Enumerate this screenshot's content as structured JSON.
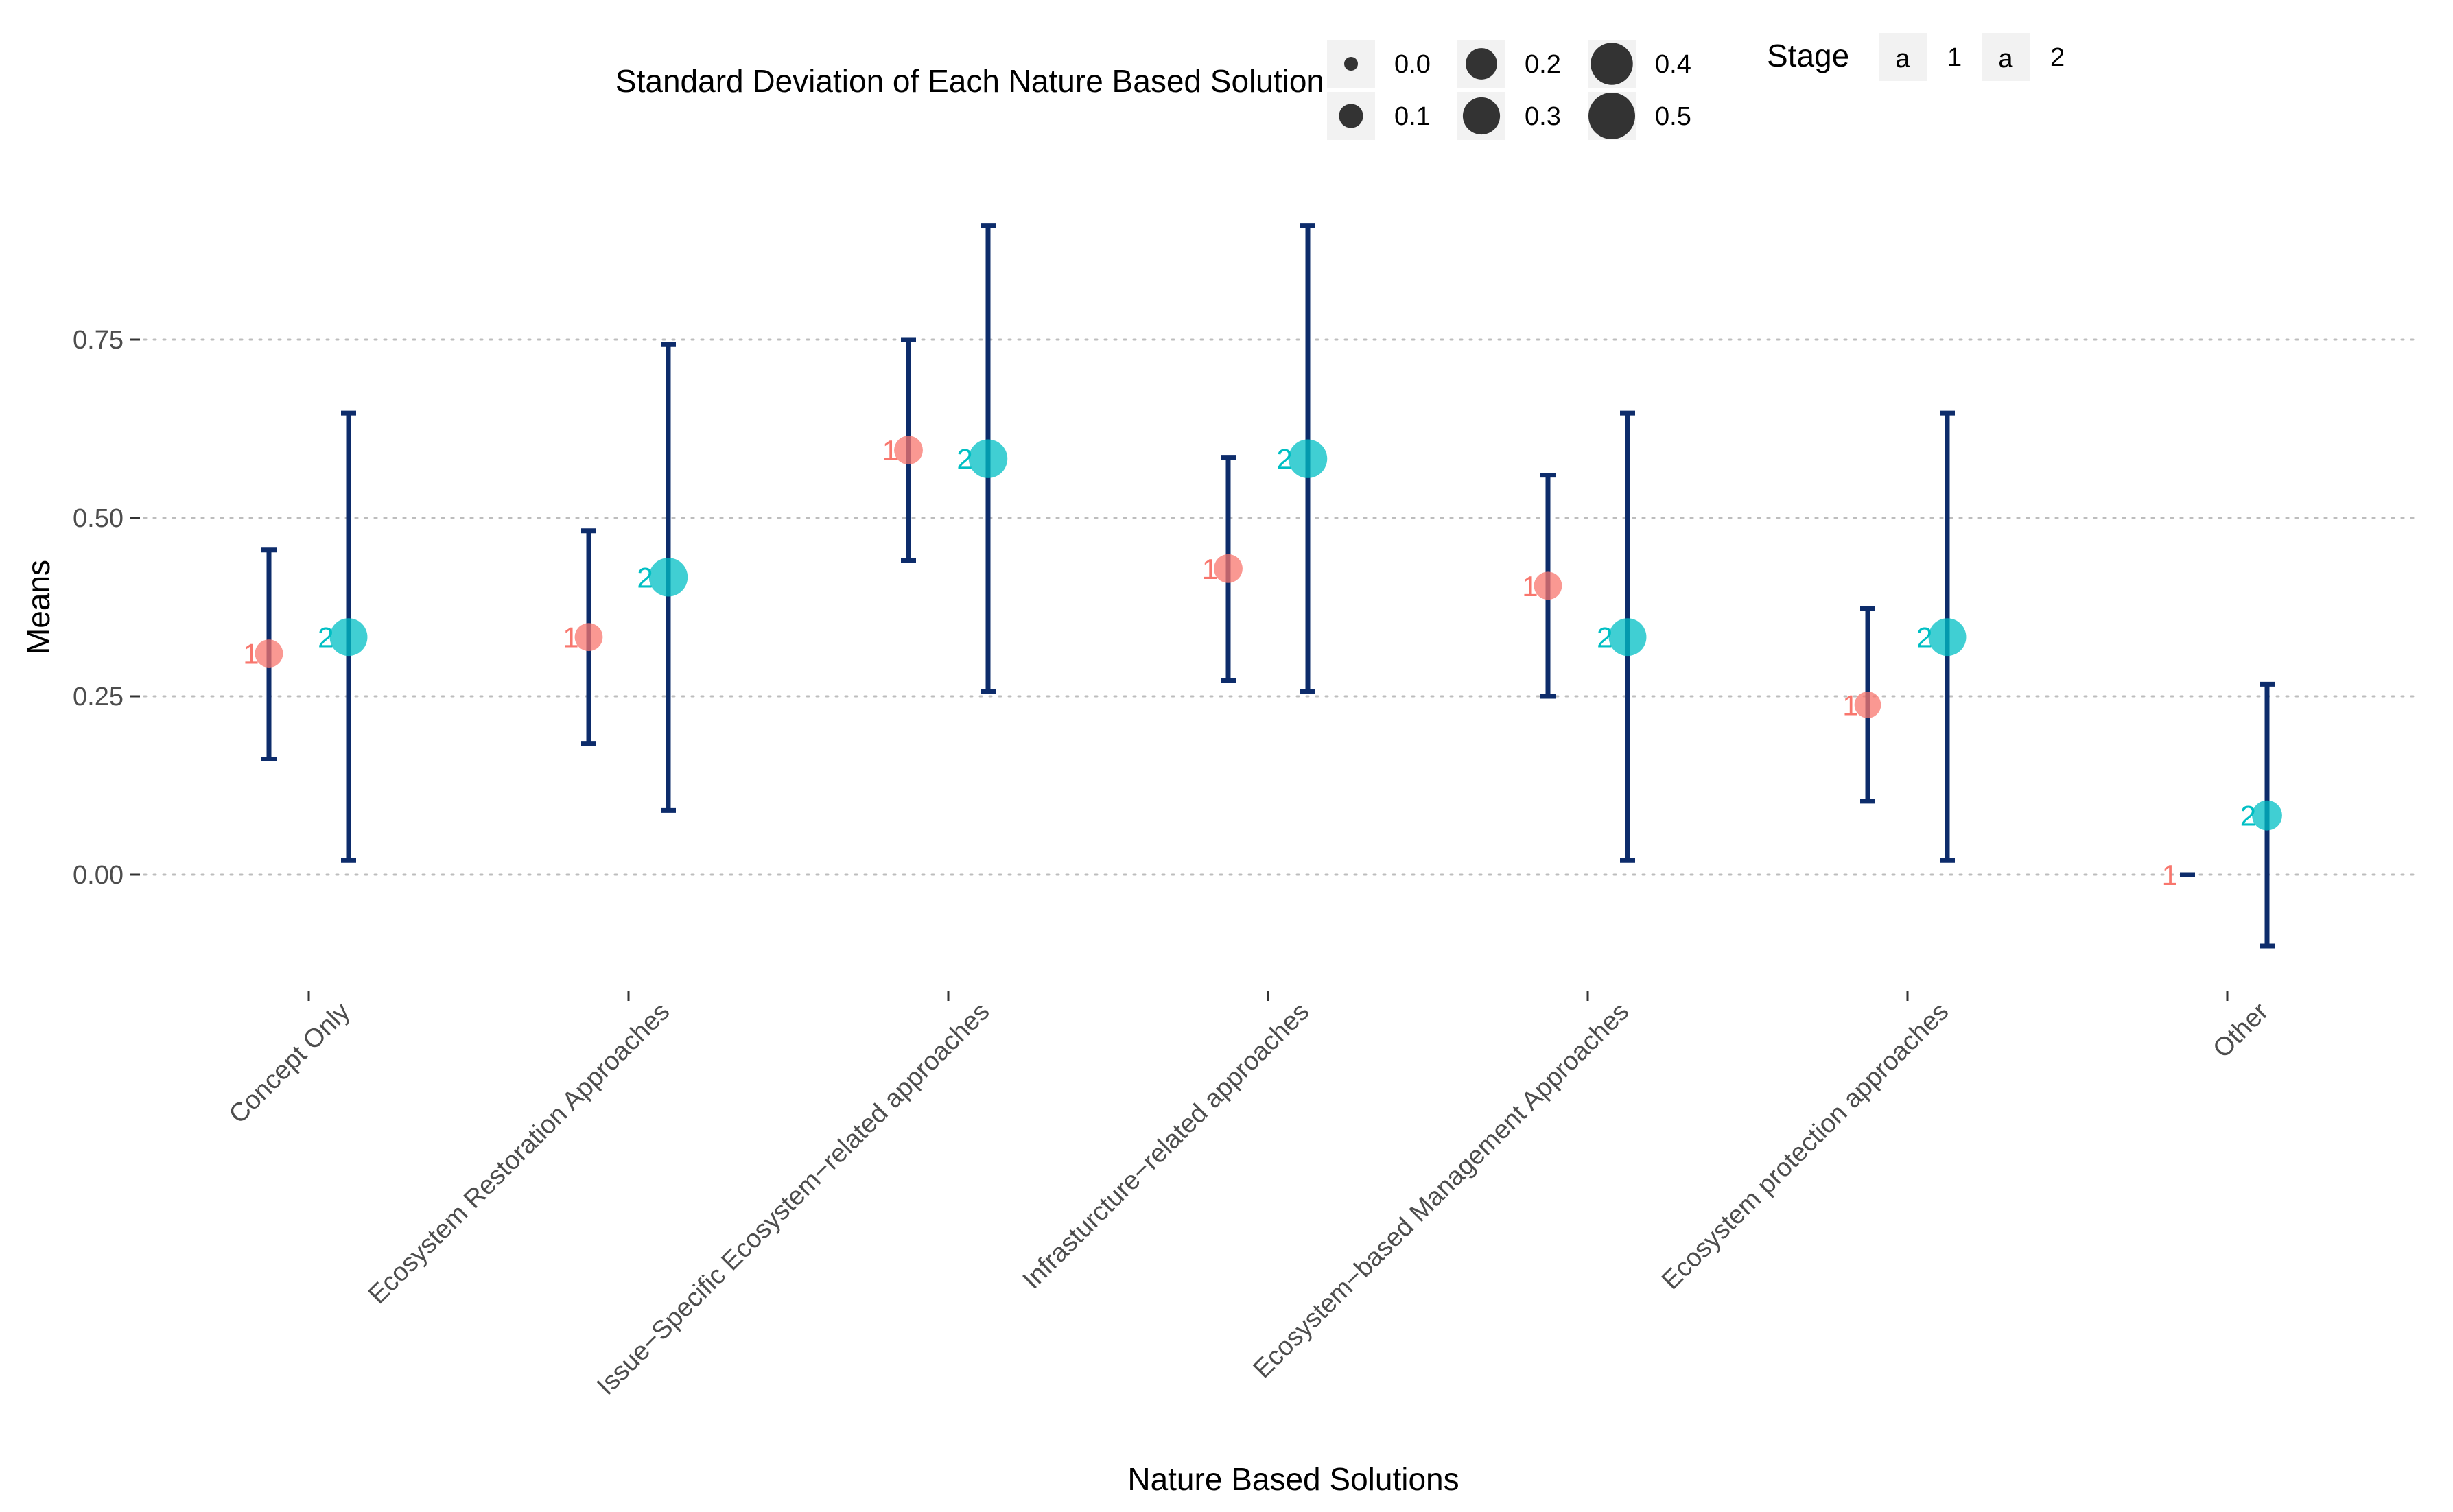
{
  "chart_data": {
    "type": "scatter",
    "title": "",
    "xlabel": "Nature Based Solutions",
    "ylabel": "Means",
    "ylim": [
      -0.135,
      0.92
    ],
    "yticks": [
      0.0,
      0.25,
      0.5,
      0.75
    ],
    "ytick_labels": [
      "0.00",
      "0.25",
      "0.50",
      "0.75"
    ],
    "grid": true,
    "categories": [
      "Concept Only",
      "Ecosystem Restoration Approaches",
      "Issue−Specific Ecosystem−related approaches",
      "Infrasturcture−related approaches",
      "Ecosystem−based Management Approaches",
      "Ecosystem protection approaches",
      "Other"
    ],
    "series": [
      {
        "name": "1",
        "label": "1",
        "color": "#f8766d",
        "means": [
          0.31,
          0.333,
          0.595,
          0.429,
          0.405,
          0.238,
          0.0
        ],
        "lower": [
          0.162,
          0.184,
          0.44,
          0.272,
          0.25,
          0.103,
          0.0
        ],
        "upper": [
          0.455,
          0.482,
          0.75,
          0.585,
          0.56,
          0.373,
          0.0
        ],
        "sd": [
          0.15,
          0.15,
          0.16,
          0.16,
          0.15,
          0.13,
          0.0
        ]
      },
      {
        "name": "2",
        "label": "2",
        "color": "#00bfc4",
        "means": [
          0.333,
          0.417,
          0.583,
          0.583,
          0.333,
          0.333,
          0.083
        ],
        "lower": [
          0.02,
          0.09,
          0.257,
          0.257,
          0.02,
          0.02,
          -0.1
        ],
        "upper": [
          0.647,
          0.743,
          0.91,
          0.91,
          0.647,
          0.647,
          0.267
        ],
        "sd": [
          0.31,
          0.33,
          0.33,
          0.33,
          0.31,
          0.31,
          0.18
        ]
      }
    ],
    "legend": {
      "position": "top",
      "size_title": "Standard Deviation of Each Nature Based Solution",
      "size_values": [
        0.0,
        0.1,
        0.2,
        0.3,
        0.4,
        0.5
      ],
      "size_labels": [
        "0.0",
        "0.1",
        "0.2",
        "0.3",
        "0.4",
        "0.5"
      ],
      "size_color": "#333333",
      "stage_title": "Stage",
      "stage_entries": [
        {
          "key_glyph": "a",
          "label": "1",
          "color": "#f8766d"
        },
        {
          "key_glyph": "a",
          "label": "2",
          "color": "#00bfc4"
        }
      ]
    },
    "errorbar_color": "#0d2c6b"
  }
}
